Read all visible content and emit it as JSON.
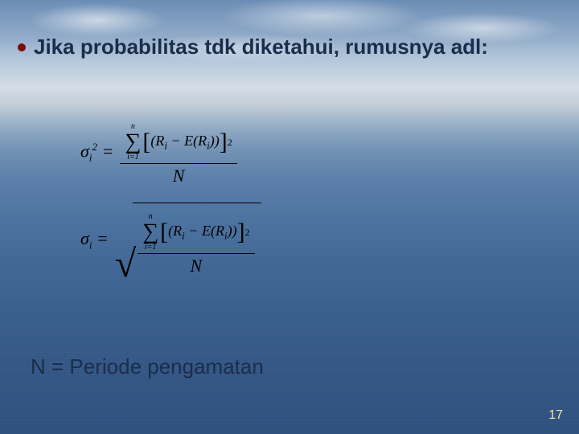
{
  "slide": {
    "bullet_color": "#7a0c0c",
    "bullet_text": "Jika probabilitas tdk diketahui, rumusnya adl:",
    "note_text": "N = Periode pengamatan",
    "page_number": "17",
    "text_color": "#1a2d4a",
    "pagenum_color": "#f5e6a8"
  },
  "formula": {
    "sigma_symbol": "σ",
    "subscript": "i",
    "squared": "2",
    "equals": " = ",
    "sum_upper": "n",
    "sum_symbol": "∑",
    "sum_lower": "i=1",
    "lbracket": "[",
    "rbracket": "]",
    "inner_open": "(",
    "R": "R",
    "minus": " − ",
    "E": "E",
    "inner_mid": "(",
    "inner_close": ")",
    "outer_close": ")",
    "exp2": "2",
    "denom": "N",
    "radical": "√"
  }
}
